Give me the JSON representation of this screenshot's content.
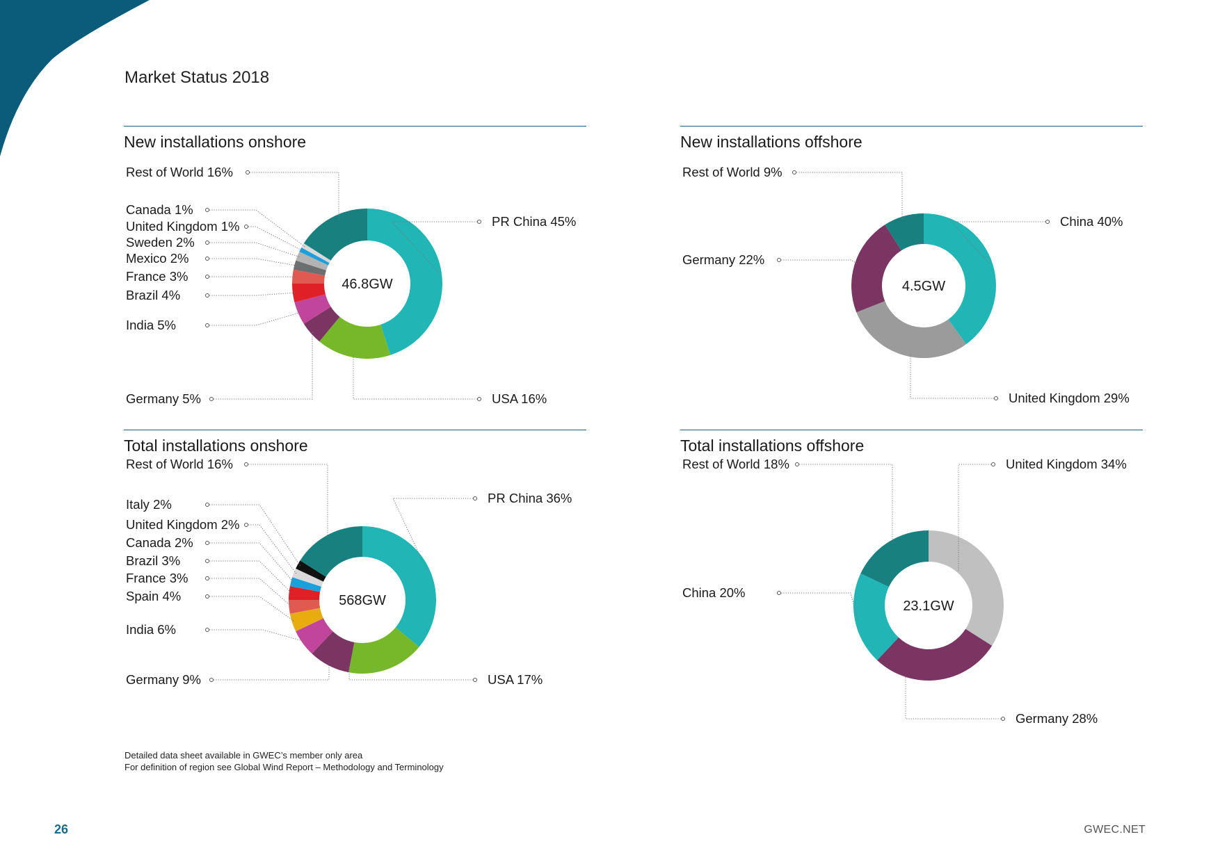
{
  "page": {
    "title": "Market Status 2018",
    "page_number": "26",
    "site": "GWEC.NET"
  },
  "notes": [
    "Detailed data sheet available in GWEC’s member only area",
    "For definition of region see Global Wind Report – Methodology and Terminology"
  ],
  "colors": {
    "accent": "#0b5c7a",
    "rule": "#1f5f7a",
    "china": "#21b5b5",
    "usa": "#76b82a",
    "germany": "#7b3563",
    "india": "#c1459a",
    "brazil": "#e02027",
    "france": "#e05a52",
    "mexico": "#6d6e70",
    "sweden": "#b3b3b3",
    "uk": "#1ca0dc",
    "canada": "#d9d9d9",
    "rest_of_world": "#198080",
    "spain": "#e8ac0f",
    "italy": "#111111",
    "uk_offshore": "#9b9b9b",
    "uk_total_offshore": "#c0c0c0"
  },
  "chart_data": [
    {
      "type": "pie",
      "title": "New installations onshore",
      "center_label": "46.8GW",
      "slices": [
        {
          "label": "PR China",
          "value": 45,
          "display": "PR China 45%",
          "color": "#21b5b5"
        },
        {
          "label": "USA",
          "value": 16,
          "display": "USA 16%",
          "color": "#76b82a"
        },
        {
          "label": "Germany",
          "value": 5,
          "display": "Germany 5%",
          "color": "#7b3563"
        },
        {
          "label": "India",
          "value": 5,
          "display": "India 5%",
          "color": "#c1459a"
        },
        {
          "label": "Brazil",
          "value": 4,
          "display": "Brazil 4%",
          "color": "#e02027"
        },
        {
          "label": "France",
          "value": 3,
          "display": "France 3%",
          "color": "#e05a52"
        },
        {
          "label": "Mexico",
          "value": 2,
          "display": "Mexico 2%",
          "color": "#6d6e70"
        },
        {
          "label": "Sweden",
          "value": 2,
          "display": "Sweden 2%",
          "color": "#b3b3b3"
        },
        {
          "label": "United Kingdom",
          "value": 1,
          "display": "United Kingdom 1%",
          "color": "#1ca0dc"
        },
        {
          "label": "Canada",
          "value": 1,
          "display": "Canada 1%",
          "color": "#d9d9d9"
        },
        {
          "label": "Rest of World",
          "value": 16,
          "display": "Rest of World 16%",
          "color": "#198080"
        }
      ]
    },
    {
      "type": "pie",
      "title": "New installations offshore",
      "center_label": "4.5GW",
      "slices": [
        {
          "label": "China",
          "value": 40,
          "display": "China 40%",
          "color": "#21b5b5"
        },
        {
          "label": "United Kingdom",
          "value": 29,
          "display": "United Kingdom 29%",
          "color": "#9b9b9b"
        },
        {
          "label": "Germany",
          "value": 22,
          "display": "Germany 22%",
          "color": "#7b3563"
        },
        {
          "label": "Rest of World",
          "value": 9,
          "display": "Rest of World 9%",
          "color": "#198080"
        }
      ]
    },
    {
      "type": "pie",
      "title": "Total installations onshore",
      "center_label": "568GW",
      "slices": [
        {
          "label": "PR China",
          "value": 36,
          "display": "PR China 36%",
          "color": "#21b5b5"
        },
        {
          "label": "USA",
          "value": 17,
          "display": "USA 17%",
          "color": "#76b82a"
        },
        {
          "label": "Germany",
          "value": 9,
          "display": "Germany 9%",
          "color": "#7b3563"
        },
        {
          "label": "India",
          "value": 6,
          "display": "India 6%",
          "color": "#c1459a"
        },
        {
          "label": "Spain",
          "value": 4,
          "display": "Spain 4%",
          "color": "#e8ac0f"
        },
        {
          "label": "France",
          "value": 3,
          "display": "France 3%",
          "color": "#e05a52"
        },
        {
          "label": "Brazil",
          "value": 3,
          "display": "Brazil 3%",
          "color": "#e02027"
        },
        {
          "label": "Canada",
          "value": 2,
          "display": "Canada 2%",
          "color": "#1ca0dc"
        },
        {
          "label": "United Kingdom",
          "value": 2,
          "display": "United Kingdom 2%",
          "color": "#d9d9d9"
        },
        {
          "label": "Italy",
          "value": 2,
          "display": "Italy 2%",
          "color": "#111111"
        },
        {
          "label": "Rest of World",
          "value": 16,
          "display": "Rest of World 16%",
          "color": "#198080"
        }
      ]
    },
    {
      "type": "pie",
      "title": "Total installations offshore",
      "center_label": "23.1GW",
      "slices": [
        {
          "label": "United Kingdom",
          "value": 34,
          "display": "United Kingdom 34%",
          "color": "#c0c0c0"
        },
        {
          "label": "Germany",
          "value": 28,
          "display": "Germany 28%",
          "color": "#7b3563"
        },
        {
          "label": "China",
          "value": 20,
          "display": "China 20%",
          "color": "#21b5b5"
        },
        {
          "label": "Rest of World",
          "value": 18,
          "display": "Rest of World 18%",
          "color": "#198080"
        }
      ]
    }
  ]
}
